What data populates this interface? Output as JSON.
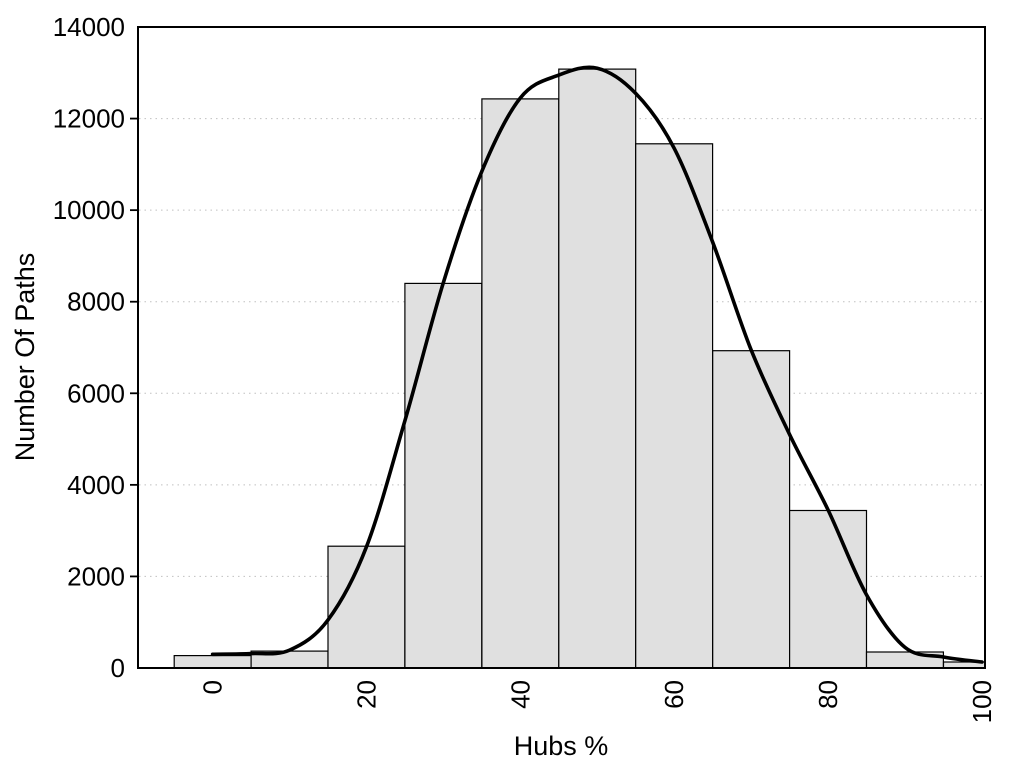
{
  "chart_data": {
    "type": "bar",
    "subtype": "histogram_with_density_curve",
    "title": "",
    "xlabel": "Hubs %",
    "ylabel": "Number Of Paths",
    "xlim": [
      -9.7,
      100.4
    ],
    "ylim": [
      0,
      14000
    ],
    "x_ticks": [
      0,
      20,
      40,
      60,
      80,
      100
    ],
    "x_tick_labels": [
      "0",
      "20",
      "40",
      "60",
      "80",
      "100"
    ],
    "x_tick_label_rotation": -90,
    "y_ticks": [
      0,
      2000,
      4000,
      6000,
      8000,
      10000,
      12000,
      14000
    ],
    "y_tick_labels": [
      "0",
      "2000",
      "4000",
      "6000",
      "8000",
      "10000",
      "12000",
      "14000"
    ],
    "grid": {
      "horizontal_dotted_at": [
        2000,
        4000,
        6000,
        8000,
        10000,
        12000
      ],
      "vertical": false,
      "color": "#c0c0c0"
    },
    "legend": "none",
    "bars": {
      "bin_width": 10,
      "bin_centers": [
        0,
        10,
        20,
        30,
        40,
        50,
        60,
        70,
        80,
        90,
        100
      ],
      "bin_edges": [
        -5,
        5,
        15,
        25,
        35,
        45,
        55,
        65,
        75,
        85,
        95,
        105
      ],
      "values": [
        270,
        370,
        2660,
        8400,
        12430,
        13080,
        11450,
        6930,
        3440,
        350,
        130
      ],
      "fill": "#e0e0e0",
      "stroke": "#000000"
    },
    "curve": {
      "name": "density-fit-curve",
      "color": "#000000",
      "width": 3.6,
      "points": [
        [
          0,
          300
        ],
        [
          5,
          315
        ],
        [
          10,
          390
        ],
        [
          15,
          1050
        ],
        [
          20,
          2650
        ],
        [
          25,
          5400
        ],
        [
          30,
          8420
        ],
        [
          35,
          10850
        ],
        [
          40,
          12450
        ],
        [
          45,
          12950
        ],
        [
          50,
          13100
        ],
        [
          55,
          12550
        ],
        [
          60,
          11350
        ],
        [
          65,
          9300
        ],
        [
          70,
          6950
        ],
        [
          75,
          5100
        ],
        [
          80,
          3450
        ],
        [
          85,
          1600
        ],
        [
          90,
          450
        ],
        [
          95,
          240
        ],
        [
          100,
          130
        ]
      ]
    },
    "colors": {
      "background": "#ffffff",
      "text": "#000000"
    }
  }
}
